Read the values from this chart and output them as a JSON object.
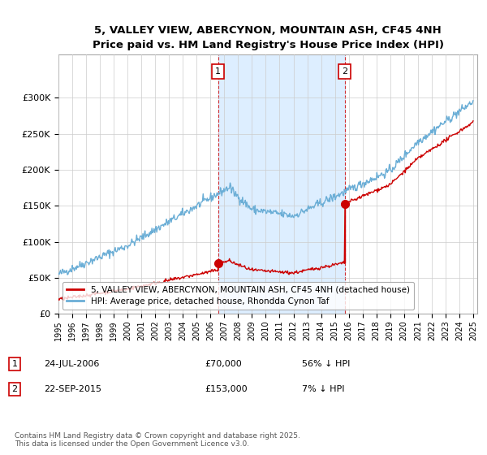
{
  "title_line1": "5, VALLEY VIEW, ABERCYNON, MOUNTAIN ASH, CF45 4NH",
  "title_line2": "Price paid vs. HM Land Registry's House Price Index (HPI)",
  "legend_line1": "5, VALLEY VIEW, ABERCYNON, MOUNTAIN ASH, CF45 4NH (detached house)",
  "legend_line2": "HPI: Average price, detached house, Rhondda Cynon Taf",
  "transaction1_label": "1",
  "transaction1_date": "24-JUL-2006",
  "transaction1_price": "£70,000",
  "transaction1_hpi": "56% ↓ HPI",
  "transaction2_label": "2",
  "transaction2_date": "22-SEP-2015",
  "transaction2_price": "£153,000",
  "transaction2_hpi": "7% ↓ HPI",
  "footnote": "Contains HM Land Registry data © Crown copyright and database right 2025.\nThis data is licensed under the Open Government Licence v3.0.",
  "hpi_color": "#6baed6",
  "price_color": "#cc0000",
  "shade_color": "#ddeeff",
  "background_color": "#ffffff",
  "grid_color": "#cccccc",
  "ylim": [
    0,
    360000
  ],
  "yticks": [
    0,
    50000,
    100000,
    150000,
    200000,
    250000,
    300000
  ],
  "transaction1_year": 2006.55,
  "transaction1_price_val": 70000,
  "transaction2_year": 2015.72,
  "transaction2_price_val": 153000
}
